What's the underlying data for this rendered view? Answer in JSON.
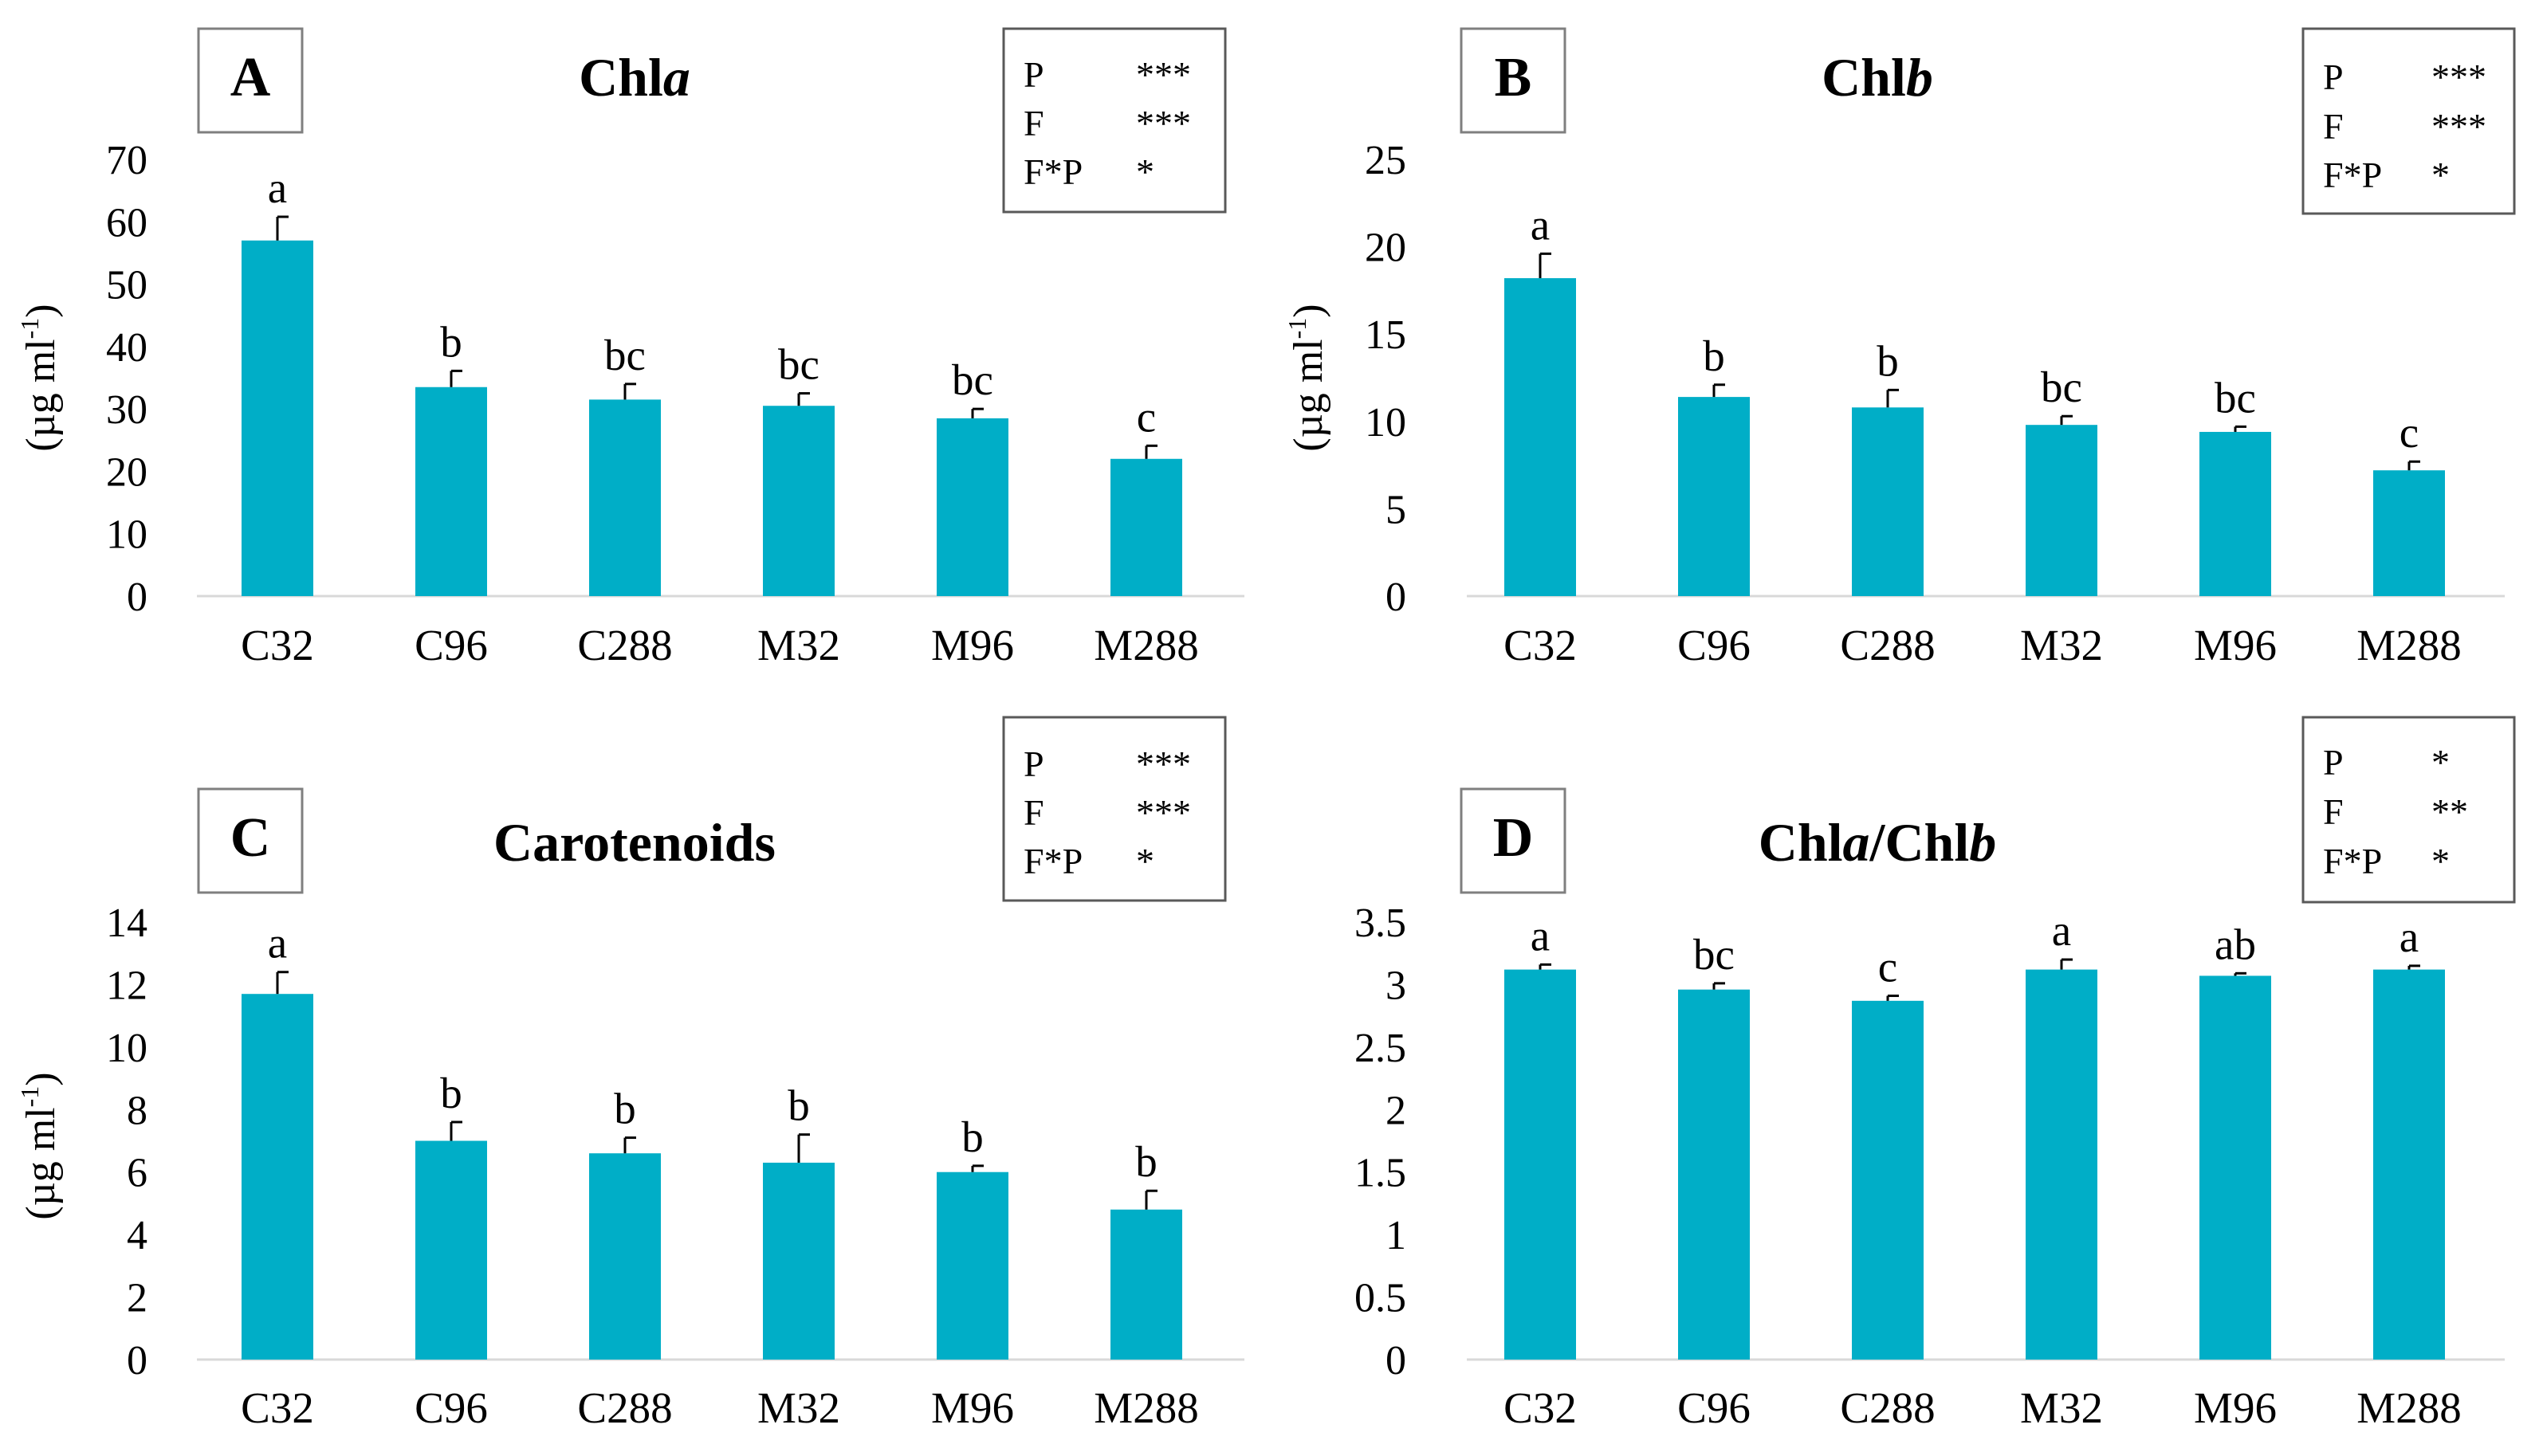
{
  "chart_data": [
    {
      "type": "bar",
      "panel": "A",
      "title": "Chla",
      "title_parts": [
        {
          "text": "Chl",
          "italic": false
        },
        {
          "text": "a",
          "italic": true
        }
      ],
      "ylabel": "(µg ml-1)",
      "ylabel_parts": [
        {
          "text": "(µg ml",
          "sup": false
        },
        {
          "text": "-1",
          "sup": true
        },
        {
          "text": ")",
          "sup": false
        }
      ],
      "ylim": [
        0,
        70
      ],
      "yticks": [
        "0",
        "10",
        "20",
        "30",
        "40",
        "50",
        "60",
        "70"
      ],
      "categories": [
        "C32",
        "C96",
        "C288",
        "M32",
        "M96",
        "M288"
      ],
      "values": [
        57,
        33.5,
        31.5,
        30.5,
        28.5,
        22
      ],
      "errors": [
        3.8,
        2.6,
        2.5,
        2.0,
        1.5,
        2.1
      ],
      "significance": [
        "a",
        "b",
        "bc",
        "bc",
        "bc",
        "c"
      ],
      "stats": [
        {
          "factor": "P",
          "sig": "***"
        },
        {
          "factor": "F",
          "sig": "***"
        },
        {
          "factor": "F*P",
          "sig": "*"
        }
      ],
      "bar_color": "#00AEC7",
      "grid": false
    },
    {
      "type": "bar",
      "panel": "B",
      "title": "Chlb",
      "title_parts": [
        {
          "text": "Chl",
          "italic": false
        },
        {
          "text": "b",
          "italic": true
        }
      ],
      "ylabel": "(µg ml-1)",
      "ylabel_parts": [
        {
          "text": "(µg ml",
          "sup": false
        },
        {
          "text": "-1",
          "sup": true
        },
        {
          "text": ")",
          "sup": false
        }
      ],
      "ylim": [
        0,
        25
      ],
      "yticks": [
        "0",
        "5",
        "10",
        "15",
        "20",
        "25"
      ],
      "categories": [
        "C32",
        "C96",
        "C288",
        "M32",
        "M96",
        "M288"
      ],
      "values": [
        18.2,
        11.4,
        10.8,
        9.8,
        9.4,
        7.2
      ],
      "errors": [
        1.4,
        0.7,
        1.0,
        0.5,
        0.3,
        0.5
      ],
      "significance": [
        "a",
        "b",
        "b",
        "bc",
        "bc",
        "c"
      ],
      "stats": [
        {
          "factor": "P",
          "sig": "***"
        },
        {
          "factor": "F",
          "sig": "***"
        },
        {
          "factor": "F*P",
          "sig": "*"
        }
      ],
      "bar_color": "#00AEC7",
      "grid": false
    },
    {
      "type": "bar",
      "panel": "C",
      "title": "Carotenoids",
      "title_parts": [
        {
          "text": "Carotenoids",
          "italic": false
        }
      ],
      "ylabel": "(µg ml-1)",
      "ylabel_parts": [
        {
          "text": "(µg ml",
          "sup": false
        },
        {
          "text": "-1",
          "sup": true
        },
        {
          "text": ")",
          "sup": false
        }
      ],
      "ylim": [
        0,
        14
      ],
      "yticks": [
        "0",
        "2",
        "4",
        "6",
        "8",
        "10",
        "12",
        "14"
      ],
      "categories": [
        "C32",
        "C96",
        "C288",
        "M32",
        "M96",
        "M288"
      ],
      "values": [
        11.7,
        7.0,
        6.6,
        6.3,
        6.0,
        4.8
      ],
      "errors": [
        0.7,
        0.6,
        0.5,
        0.9,
        0.2,
        0.6
      ],
      "significance": [
        "a",
        "b",
        "b",
        "b",
        "b",
        "b"
      ],
      "stats": [
        {
          "factor": "P",
          "sig": "***"
        },
        {
          "factor": "F",
          "sig": "***"
        },
        {
          "factor": "F*P",
          "sig": "*"
        }
      ],
      "bar_color": "#00AEC7",
      "grid": false
    },
    {
      "type": "bar",
      "panel": "D",
      "title": "Chla/Chlb",
      "title_parts": [
        {
          "text": "Chl",
          "italic": false
        },
        {
          "text": "a",
          "italic": true
        },
        {
          "text": "/Chl",
          "italic": false
        },
        {
          "text": "b",
          "italic": true
        }
      ],
      "ylabel": "",
      "ylabel_parts": [],
      "ylim": [
        0,
        3.5
      ],
      "yticks": [
        "0",
        "0.5",
        "1",
        "1.5",
        "2",
        "2.5",
        "3",
        "3.5"
      ],
      "categories": [
        "C32",
        "C96",
        "C288",
        "M32",
        "M96",
        "M288"
      ],
      "values": [
        3.12,
        2.96,
        2.87,
        3.12,
        3.07,
        3.12
      ],
      "errors": [
        0.04,
        0.05,
        0.04,
        0.08,
        0.02,
        0.03
      ],
      "significance": [
        "a",
        "bc",
        "c",
        "a",
        "ab",
        "a"
      ],
      "stats": [
        {
          "factor": "P",
          "sig": "*"
        },
        {
          "factor": "F",
          "sig": "**"
        },
        {
          "factor": "F*P",
          "sig": "*"
        }
      ],
      "bar_color": "#00AEC7",
      "grid": false
    }
  ]
}
